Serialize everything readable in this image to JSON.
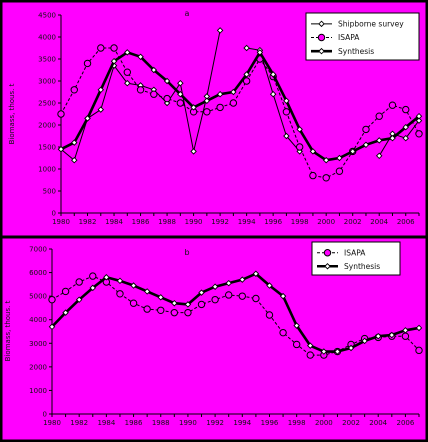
{
  "colors": {
    "background": "#ff00ff",
    "border": "#000000",
    "series": "#000000",
    "marker_fill": "#ff00ff"
  },
  "chart_data": [
    {
      "type": "line",
      "panel_label": "a",
      "ylabel": "Biomass, thous. t",
      "xlim": [
        1980,
        2007
      ],
      "ylim": [
        0,
        4500
      ],
      "y_ticks": [
        0,
        500,
        1000,
        1500,
        2000,
        2500,
        3000,
        3500,
        4000,
        4500
      ],
      "x_tick_labels": [
        "1980",
        "1982",
        "1984",
        "1986",
        "1988",
        "1990",
        "1992",
        "1994",
        "1996",
        "1998",
        "2000",
        "2002",
        "2004",
        "2006"
      ],
      "legend_position": "top-right",
      "series": [
        {
          "name": "Shipborne survey",
          "marker": "diamond",
          "segments": [
            {
              "x": [
                1980,
                1981,
                1982,
                1983,
                1984,
                1985,
                1986,
                1987,
                1988,
                1989,
                1990,
                1991,
                1992
              ],
              "y": [
                1450,
                1200,
                2150,
                2350,
                3350,
                2950,
                2900,
                2800,
                2500,
                2950,
                1400,
                2650,
                4150
              ]
            },
            {
              "x": [
                1994,
                1995,
                1996,
                1997,
                1998
              ],
              "y": [
                3750,
                3700,
                2700,
                1750,
                1400
              ]
            },
            {
              "x": [
                2004,
                2005,
                2006,
                2007
              ],
              "y": [
                1300,
                1800,
                1700,
                2100
              ]
            }
          ]
        },
        {
          "name": "ISAPA",
          "marker": "circle-open",
          "line": "dashed",
          "x": [
            1980,
            1981,
            1982,
            1983,
            1984,
            1985,
            1986,
            1987,
            1988,
            1989,
            1990,
            1991,
            1992,
            1993,
            1994,
            1995,
            1996,
            1997,
            1998,
            1999,
            2000,
            2001,
            2002,
            2003,
            2004,
            2005,
            2006,
            2007
          ],
          "y": [
            2250,
            2800,
            3400,
            3750,
            3750,
            3200,
            2800,
            2700,
            2600,
            2500,
            2300,
            2300,
            2400,
            2500,
            3000,
            3500,
            3100,
            2300,
            1500,
            850,
            800,
            950,
            1400,
            1900,
            2200,
            2450,
            2350,
            1800
          ]
        },
        {
          "name": "Synthesis",
          "marker": "diamond",
          "line": "thick",
          "x": [
            1980,
            1981,
            1982,
            1983,
            1984,
            1985,
            1986,
            1987,
            1988,
            1989,
            1990,
            1991,
            1992,
            1993,
            1994,
            1995,
            1996,
            1997,
            1998,
            1999,
            2000,
            2001,
            2002,
            2003,
            2004,
            2005,
            2006,
            2007
          ],
          "y": [
            1450,
            1600,
            2150,
            2800,
            3450,
            3650,
            3550,
            3250,
            3000,
            2700,
            2400,
            2550,
            2700,
            2750,
            3150,
            3650,
            3150,
            2550,
            1900,
            1400,
            1200,
            1250,
            1400,
            1550,
            1650,
            1700,
            1950,
            2200
          ]
        }
      ]
    },
    {
      "type": "line",
      "panel_label": "b",
      "ylabel": "Biomass, thous. t",
      "xlim": [
        1980,
        2007
      ],
      "ylim": [
        0,
        7000
      ],
      "y_ticks": [
        0,
        1000,
        2000,
        3000,
        4000,
        5000,
        6000,
        7000
      ],
      "x_tick_labels": [
        "1980",
        "1982",
        "1984",
        "1986",
        "1988",
        "1990",
        "1992",
        "1994",
        "1996",
        "1998",
        "2000",
        "2002",
        "2004",
        "2006"
      ],
      "legend_position": "top-right",
      "series": [
        {
          "name": "ISAPA",
          "marker": "circle-open",
          "line": "dashed",
          "x": [
            1980,
            1981,
            1982,
            1983,
            1984,
            1985,
            1986,
            1987,
            1988,
            1989,
            1990,
            1991,
            1992,
            1993,
            1994,
            1995,
            1996,
            1997,
            1998,
            1999,
            2000,
            2001,
            2002,
            2003,
            2004,
            2005,
            2006,
            2007
          ],
          "y": [
            4850,
            5200,
            5600,
            5850,
            5600,
            5100,
            4700,
            4450,
            4400,
            4300,
            4300,
            4650,
            4850,
            5050,
            5000,
            4900,
            4200,
            3450,
            2950,
            2500,
            2500,
            2650,
            2950,
            3200,
            3250,
            3300,
            3300,
            2700
          ]
        },
        {
          "name": "Synthesis",
          "marker": "diamond",
          "line": "thick",
          "x": [
            1980,
            1981,
            1982,
            1983,
            1984,
            1985,
            1986,
            1987,
            1988,
            1989,
            1990,
            1991,
            1992,
            1993,
            1994,
            1995,
            1996,
            1997,
            1998,
            1999,
            2000,
            2001,
            2002,
            2003,
            2004,
            2005,
            2006,
            2007
          ],
          "y": [
            3700,
            4300,
            4850,
            5350,
            5800,
            5650,
            5450,
            5200,
            4950,
            4700,
            4650,
            5150,
            5400,
            5550,
            5700,
            5950,
            5450,
            5000,
            3750,
            2900,
            2650,
            2650,
            2800,
            3100,
            3300,
            3350,
            3550,
            3650
          ]
        }
      ]
    }
  ]
}
